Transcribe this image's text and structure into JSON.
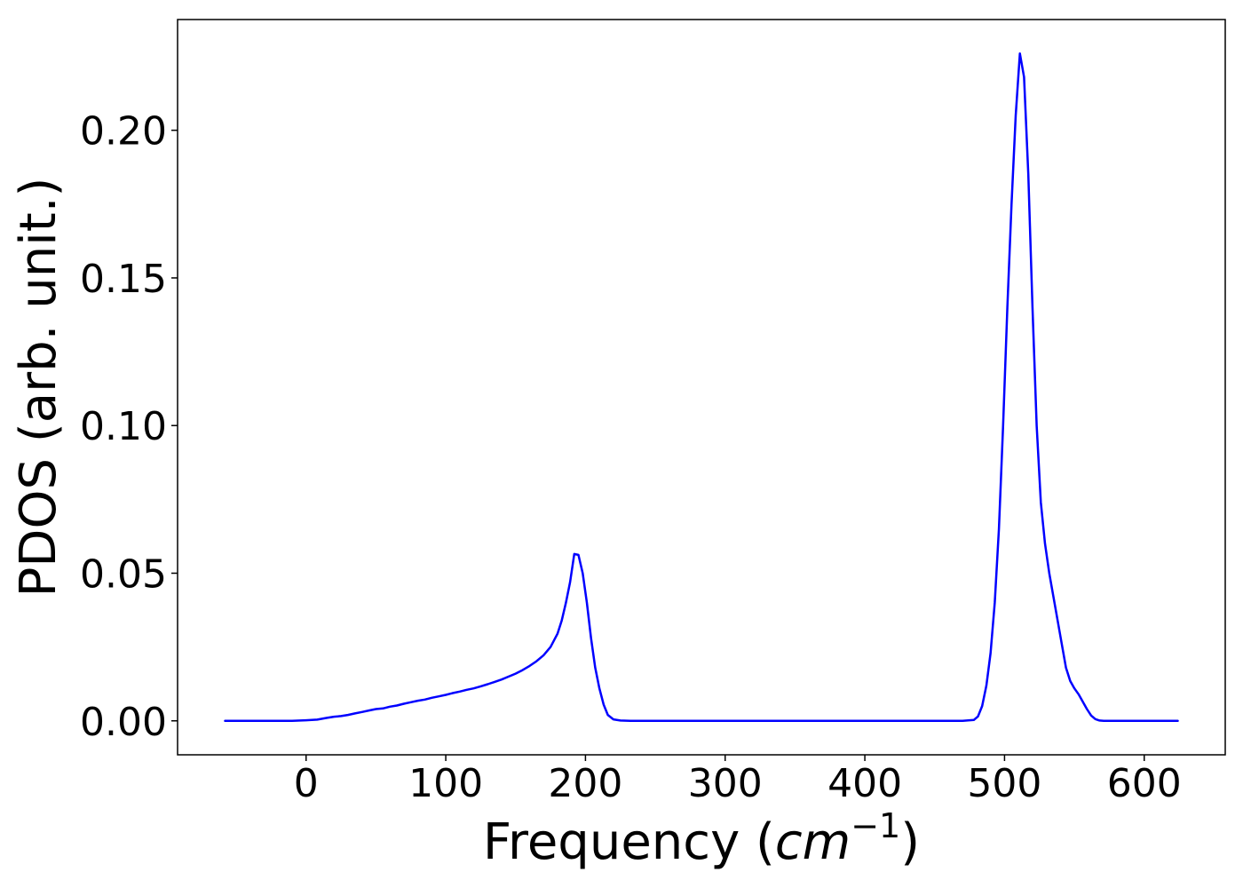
{
  "chart_data": {
    "type": "line",
    "title": "",
    "xlabel": "Frequency (",
    "xlabel_math": "cm",
    "xlabel_sup": "−1",
    "xlabel_end": ")",
    "ylabel": "PDOS (arb. unit.)",
    "xlim": [
      -92,
      658
    ],
    "ylim": [
      -0.0115,
      0.2375
    ],
    "xticks": [
      0,
      100,
      200,
      300,
      400,
      500,
      600
    ],
    "xtick_labels": [
      "0",
      "100",
      "200",
      "300",
      "400",
      "500",
      "600"
    ],
    "yticks": [
      0.0,
      0.05,
      0.1,
      0.15,
      0.2
    ],
    "ytick_labels": [
      "0.00",
      "0.05",
      "0.10",
      "0.15",
      "0.20"
    ],
    "grid": false,
    "series": [
      {
        "color": "#0000ff",
        "x": [
          -58,
          -30,
          -10,
          0,
          8,
          15,
          20,
          25,
          30,
          35,
          40,
          45,
          50,
          55,
          60,
          65,
          70,
          75,
          80,
          85,
          90,
          95,
          100,
          105,
          110,
          115,
          120,
          125,
          130,
          135,
          140,
          145,
          150,
          155,
          160,
          165,
          170,
          175,
          180,
          183,
          186,
          189,
          192,
          195,
          198,
          201,
          204,
          207,
          210,
          213,
          216,
          220,
          225,
          232,
          250,
          300,
          350,
          400,
          450,
          470,
          478,
          481,
          484,
          487,
          490,
          493,
          496,
          499,
          502,
          505,
          508,
          511,
          514,
          517,
          520,
          523,
          526,
          529,
          532,
          535,
          538,
          541,
          544,
          547,
          550,
          553,
          556,
          559,
          562,
          565,
          568,
          571,
          574,
          578,
          585,
          600,
          624
        ],
        "y": [
          0,
          0,
          0,
          0.0002,
          0.0004,
          0.001,
          0.0014,
          0.0016,
          0.002,
          0.0025,
          0.003,
          0.0035,
          0.004,
          0.0042,
          0.0048,
          0.0052,
          0.0058,
          0.0063,
          0.0068,
          0.0072,
          0.0078,
          0.0083,
          0.0088,
          0.0094,
          0.0099,
          0.0105,
          0.011,
          0.0117,
          0.0124,
          0.0132,
          0.014,
          0.015,
          0.016,
          0.0172,
          0.0186,
          0.0202,
          0.0222,
          0.025,
          0.0295,
          0.034,
          0.04,
          0.047,
          0.0565,
          0.0562,
          0.05,
          0.04,
          0.028,
          0.018,
          0.011,
          0.0055,
          0.002,
          0.0005,
          0.0001,
          0,
          0,
          0,
          0,
          0,
          0,
          0,
          0.0003,
          0.0015,
          0.005,
          0.012,
          0.023,
          0.04,
          0.065,
          0.1,
          0.14,
          0.175,
          0.205,
          0.226,
          0.218,
          0.185,
          0.14,
          0.1,
          0.074,
          0.06,
          0.05,
          0.042,
          0.034,
          0.026,
          0.018,
          0.0135,
          0.011,
          0.009,
          0.0065,
          0.004,
          0.0018,
          0.0006,
          0.0001,
          0,
          0,
          0,
          0,
          0,
          0
        ]
      }
    ]
  }
}
